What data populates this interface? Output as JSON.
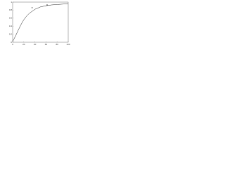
{
  "chart_data": {
    "type": "line",
    "series": [
      {
        "color": "#222222",
        "mode": "line",
        "x": [
          0,
          5,
          10,
          15,
          20,
          25,
          30,
          40,
          50,
          60,
          70,
          80,
          90,
          100
        ],
        "values": [
          0.02,
          0.15,
          0.3,
          0.44,
          0.56,
          0.65,
          0.72,
          0.82,
          0.88,
          0.91,
          0.93,
          0.94,
          0.95,
          0.96
        ]
      },
      {
        "color": "#222222",
        "mode": "markers",
        "x": [
          35,
          62
        ],
        "values": [
          0.86,
          0.93
        ]
      }
    ],
    "xlim": [
      0,
      100
    ],
    "xticks": [
      0,
      20,
      40,
      60,
      80,
      100
    ],
    "ylim": [
      0,
      1
    ],
    "yticks": [
      0,
      0.2,
      0.4,
      0.6,
      0.8,
      1
    ]
  }
}
